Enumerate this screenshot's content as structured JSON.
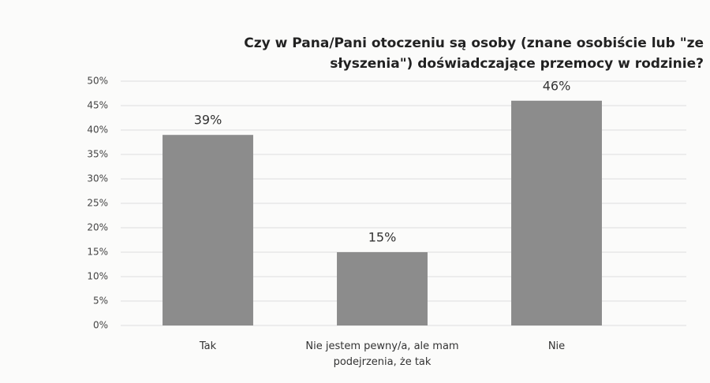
{
  "chart_data": {
    "type": "bar",
    "title": "Czy w Pana/Pani otoczeniu są osoby (znane osobiście lub \"ze słyszenia\") doświadczające przemocy w rodzinie?",
    "categories": [
      "Tak",
      "Nie jestem pewny/a, ale mam podejrzenia, że tak",
      "Nie"
    ],
    "values": [
      39,
      15,
      46
    ],
    "value_labels": [
      "39%",
      "15%",
      "46%"
    ],
    "color": "#8c8c8c",
    "ylim": [
      0,
      50
    ],
    "yticks": [
      {
        "value": 0,
        "label": "0%"
      },
      {
        "value": 5,
        "label": "5%"
      },
      {
        "value": 10,
        "label": "10%"
      },
      {
        "value": 15,
        "label": "15%"
      },
      {
        "value": 20,
        "label": "20%"
      },
      {
        "value": 25,
        "label": "25%"
      },
      {
        "value": 30,
        "label": "30%"
      },
      {
        "value": 35,
        "label": "35%"
      },
      {
        "value": 40,
        "label": "40%"
      },
      {
        "value": 45,
        "label": "45%"
      },
      {
        "value": 50,
        "label": "50%"
      }
    ],
    "grid": true
  }
}
